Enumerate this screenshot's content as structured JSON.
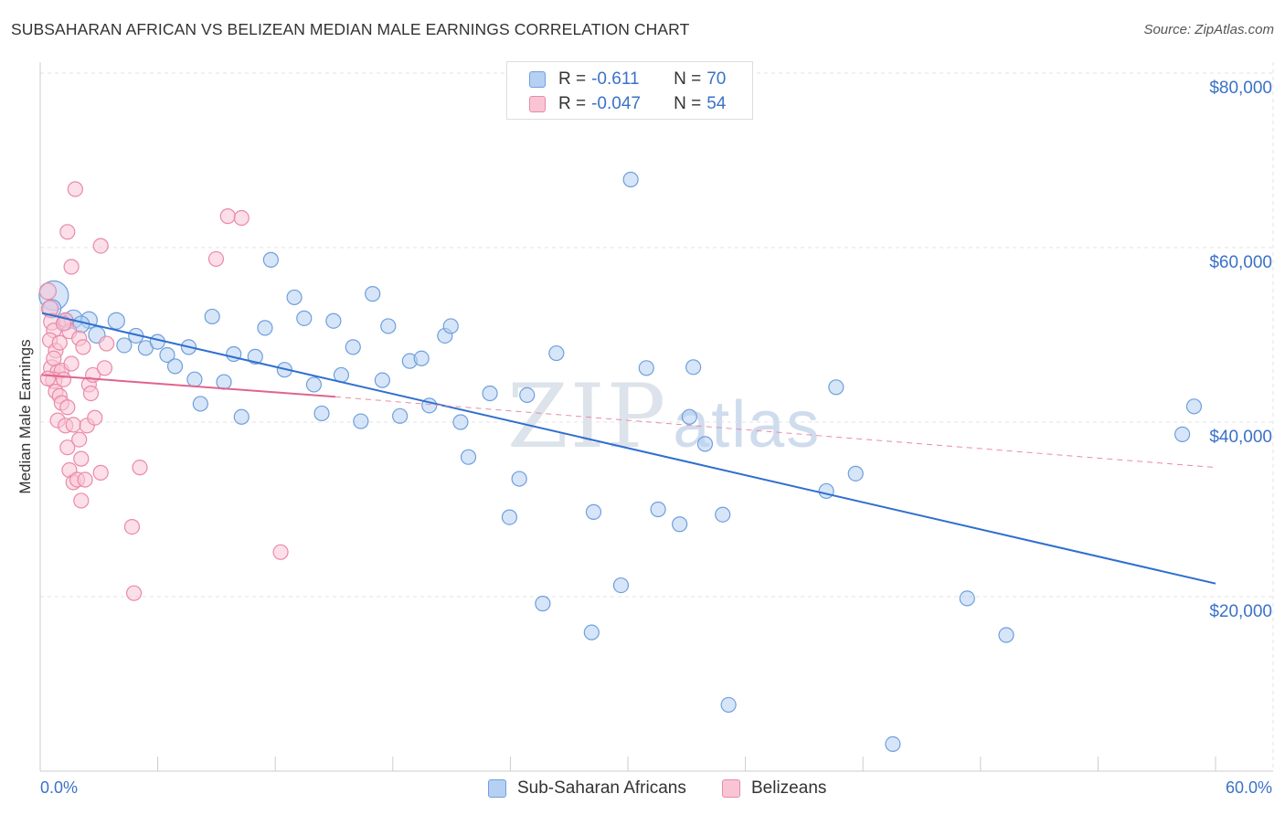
{
  "title": "SUBSAHARAN AFRICAN VS BELIZEAN MEDIAN MALE EARNINGS CORRELATION CHART",
  "source": "Source: ZipAtlas.com",
  "watermark": {
    "zip": "ZIP",
    "atlas": "atlas"
  },
  "legend_top": {
    "rows": [
      {
        "r_label": "R =",
        "r_value": "-0.611",
        "n_label": "N =",
        "n_value": "70",
        "color": "#6f9fdc"
      },
      {
        "r_label": "R =",
        "r_value": "-0.047",
        "n_label": "N =",
        "n_value": "54",
        "color": "#e98aa8"
      }
    ]
  },
  "chart_data": {
    "type": "scatter",
    "title": "SUBSAHARAN AFRICAN VS BELIZEAN MEDIAN MALE EARNINGS CORRELATION CHART",
    "xlabel": "",
    "ylabel": "Median Male Earnings",
    "xlim": [
      0,
      60
    ],
    "ylim": [
      0,
      84000
    ],
    "x_tick_labels": [
      "0.0%",
      "60.0%"
    ],
    "y_ticks": [
      20000,
      40000,
      60000,
      80000
    ],
    "y_tick_labels": [
      "$20,000",
      "$40,000",
      "$60,000",
      "$80,000"
    ],
    "grid": true,
    "legend_position": "bottom",
    "series": [
      {
        "name": "Sub-Saharan Africans",
        "color": "#6f9fdc",
        "fill": "#b5d0f2",
        "trend": {
          "x": [
            0,
            60
          ],
          "y": [
            52500,
            21500
          ]
        },
        "points": [
          [
            0.6,
            54500,
            16
          ],
          [
            0.5,
            53000,
            10
          ],
          [
            1.2,
            51500,
            9
          ],
          [
            1.6,
            51800,
            10
          ],
          [
            2.4,
            51700,
            9
          ],
          [
            2.8,
            50000,
            9
          ],
          [
            3.8,
            51600,
            9
          ],
          [
            4.2,
            48800,
            8
          ],
          [
            4.8,
            49900,
            8
          ],
          [
            5.3,
            48500,
            8
          ],
          [
            5.9,
            49200,
            8
          ],
          [
            6.4,
            47700,
            8
          ],
          [
            6.8,
            46400,
            8
          ],
          [
            7.5,
            48600,
            8
          ],
          [
            7.8,
            44900,
            8
          ],
          [
            8.1,
            42100,
            8
          ],
          [
            8.7,
            52100,
            8
          ],
          [
            9.3,
            44600,
            8
          ],
          [
            9.8,
            47800,
            8
          ],
          [
            10.2,
            40600,
            8
          ],
          [
            10.9,
            47500,
            8
          ],
          [
            11.4,
            50800,
            8
          ],
          [
            11.7,
            58600,
            8
          ],
          [
            12.4,
            46000,
            8
          ],
          [
            12.9,
            54300,
            8
          ],
          [
            13.4,
            51900,
            8
          ],
          [
            13.9,
            44300,
            8
          ],
          [
            14.3,
            41000,
            8
          ],
          [
            14.9,
            51600,
            8
          ],
          [
            15.3,
            45400,
            8
          ],
          [
            15.9,
            48600,
            8
          ],
          [
            16.3,
            40100,
            8
          ],
          [
            16.9,
            54700,
            8
          ],
          [
            17.4,
            44800,
            8
          ],
          [
            17.7,
            51000,
            8
          ],
          [
            18.3,
            40700,
            8
          ],
          [
            18.8,
            47000,
            8
          ],
          [
            19.4,
            47300,
            8
          ],
          [
            19.8,
            41900,
            8
          ],
          [
            20.6,
            49900,
            8
          ],
          [
            20.9,
            51000,
            8
          ],
          [
            21.4,
            40000,
            8
          ],
          [
            21.8,
            36000,
            8
          ],
          [
            22.9,
            43300,
            8
          ],
          [
            23.9,
            29100,
            8
          ],
          [
            24.4,
            33500,
            8
          ],
          [
            24.8,
            43100,
            8
          ],
          [
            25.6,
            19200,
            8
          ],
          [
            26.3,
            47900,
            8
          ],
          [
            28.1,
            15900,
            8
          ],
          [
            28.2,
            29700,
            8
          ],
          [
            29.6,
            21300,
            8
          ],
          [
            30.1,
            67800,
            8
          ],
          [
            30.9,
            46200,
            8
          ],
          [
            31.5,
            30000,
            8
          ],
          [
            32.6,
            28300,
            8
          ],
          [
            33.1,
            40600,
            8
          ],
          [
            33.3,
            46300,
            8
          ],
          [
            33.9,
            37500,
            8
          ],
          [
            34.8,
            29400,
            8
          ],
          [
            35.1,
            7600,
            8
          ],
          [
            40.1,
            32100,
            8
          ],
          [
            40.6,
            44000,
            8
          ],
          [
            41.6,
            34100,
            8
          ],
          [
            43.5,
            3100,
            8
          ],
          [
            47.3,
            19800,
            8
          ],
          [
            49.3,
            15600,
            8
          ],
          [
            58.3,
            38600,
            8
          ],
          [
            58.9,
            41800,
            8
          ],
          [
            2.0,
            51200,
            9
          ]
        ]
      },
      {
        "name": "Belizeans",
        "color": "#e98aa8",
        "fill": "#f9c5d5",
        "trend": {
          "x": [
            0,
            15
          ],
          "y": [
            45400,
            42900
          ]
        },
        "trend_dashed": {
          "x": [
            15,
            60
          ],
          "y": [
            42900,
            34800
          ]
        },
        "points": [
          [
            0.3,
            55000,
            9
          ],
          [
            0.4,
            53000,
            9
          ],
          [
            0.5,
            51500,
            9
          ],
          [
            0.6,
            50500,
            8
          ],
          [
            0.4,
            49400,
            8
          ],
          [
            0.7,
            48200,
            8
          ],
          [
            0.5,
            46200,
            9
          ],
          [
            0.8,
            45800,
            8
          ],
          [
            1.0,
            45900,
            8
          ],
          [
            0.6,
            44800,
            9
          ],
          [
            1.1,
            44900,
            8
          ],
          [
            0.7,
            43500,
            8
          ],
          [
            0.9,
            43000,
            8
          ],
          [
            1.0,
            42200,
            8
          ],
          [
            1.3,
            41700,
            8
          ],
          [
            0.8,
            40200,
            8
          ],
          [
            1.2,
            39600,
            8
          ],
          [
            1.6,
            39700,
            8
          ],
          [
            1.3,
            37100,
            8
          ],
          [
            1.9,
            38000,
            8
          ],
          [
            1.4,
            34500,
            8
          ],
          [
            2.0,
            35800,
            8
          ],
          [
            1.6,
            33100,
            8
          ],
          [
            1.8,
            33400,
            8
          ],
          [
            2.2,
            33400,
            8
          ],
          [
            2.0,
            31000,
            8
          ],
          [
            2.3,
            39600,
            8
          ],
          [
            2.4,
            44300,
            8
          ],
          [
            2.6,
            45400,
            8
          ],
          [
            2.5,
            43300,
            8
          ],
          [
            1.3,
            61800,
            8
          ],
          [
            1.5,
            57800,
            8
          ],
          [
            1.7,
            66700,
            8
          ],
          [
            1.2,
            51700,
            8
          ],
          [
            1.4,
            50400,
            8
          ],
          [
            1.9,
            49600,
            8
          ],
          [
            2.1,
            48600,
            8
          ],
          [
            0.9,
            49100,
            8
          ],
          [
            3.0,
            60200,
            8
          ],
          [
            3.3,
            49000,
            8
          ],
          [
            3.2,
            46200,
            8
          ],
          [
            3.0,
            34200,
            8
          ],
          [
            4.6,
            28000,
            8
          ],
          [
            4.7,
            20400,
            8
          ],
          [
            5.0,
            34800,
            8
          ],
          [
            8.9,
            58700,
            8
          ],
          [
            9.5,
            63600,
            8
          ],
          [
            10.2,
            63400,
            8
          ],
          [
            12.2,
            25100,
            8
          ],
          [
            0.3,
            45000,
            8
          ],
          [
            1.1,
            51300,
            8
          ],
          [
            0.6,
            47300,
            8
          ],
          [
            1.5,
            46700,
            8
          ],
          [
            2.7,
            40500,
            8
          ]
        ]
      }
    ]
  },
  "legend_bottom": {
    "items": [
      "Sub-Saharan Africans",
      "Belizeans"
    ]
  }
}
